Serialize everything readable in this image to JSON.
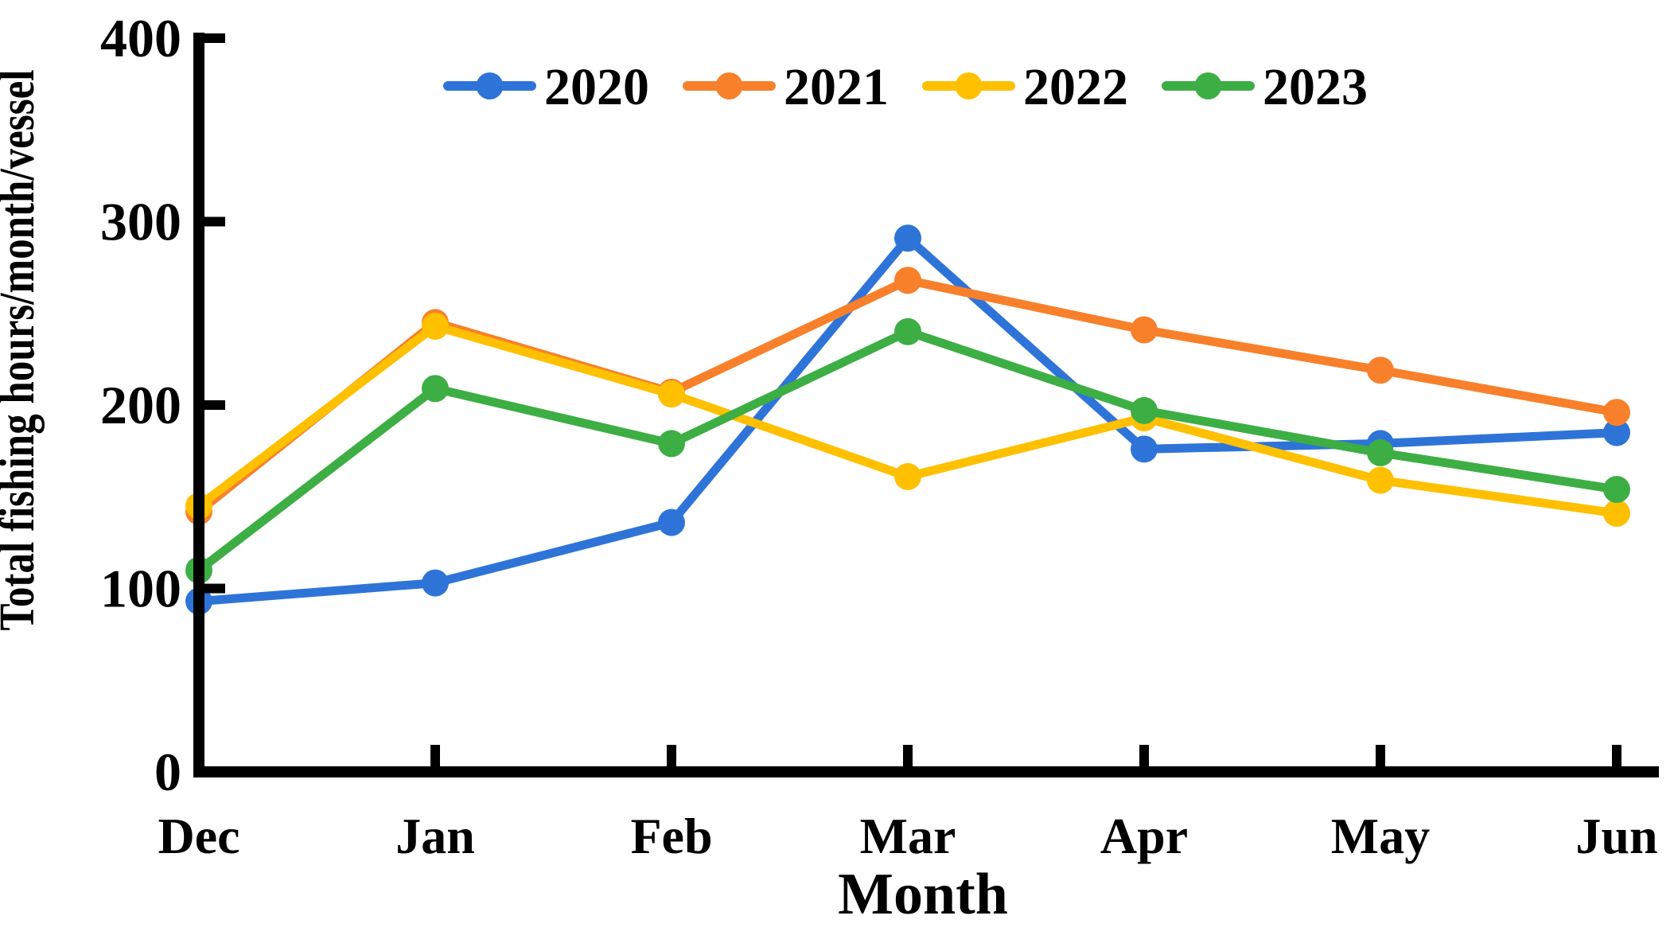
{
  "chart_data": {
    "type": "line",
    "title": "",
    "xlabel": "Month",
    "ylabel": "Total fishing hours/month/vessel",
    "categories": [
      "Dec",
      "Jan",
      "Feb",
      "Mar",
      "Apr",
      "May",
      "Jun"
    ],
    "yticks": [
      0,
      100,
      200,
      300,
      400
    ],
    "ylim": [
      0,
      400
    ],
    "grid": false,
    "legend_position": "top-center",
    "axis_color": "#000000",
    "series": [
      {
        "name": "2020",
        "color": "#2E74D8",
        "values": [
          93,
          103,
          136,
          291,
          176,
          179,
          185
        ]
      },
      {
        "name": "2021",
        "color": "#F8802B",
        "values": [
          142,
          245,
          207,
          268,
          241,
          219,
          196
        ]
      },
      {
        "name": "2022",
        "color": "#FFC000",
        "values": [
          145,
          243,
          206,
          161,
          193,
          159,
          141
        ]
      },
      {
        "name": "2023",
        "color": "#3DAE44",
        "values": [
          110,
          209,
          179,
          240,
          197,
          174,
          154
        ]
      }
    ]
  }
}
